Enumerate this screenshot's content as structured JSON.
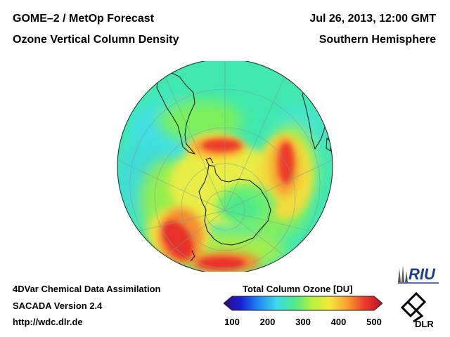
{
  "header": {
    "title_left_1": "GOME–2 / MetOp Forecast",
    "title_left_2": "Ozone Vertical Column Density",
    "title_right_1": "Jul 26, 2013, 12:00 GMT",
    "title_right_2": "Southern Hemisphere"
  },
  "footer": {
    "line1": "4DVar Chemical Data Assimilation",
    "line2": "SACADA Version 2.4",
    "line3": "http://wdc.dlr.de"
  },
  "colorbar": {
    "title": "Total Column Ozone [DU]",
    "min": 100,
    "max": 500,
    "ticks": [
      "100",
      "200",
      "300",
      "400",
      "500"
    ],
    "colors": [
      "#2b0a6e",
      "#1a20d8",
      "#1f8cf0",
      "#3fd8f0",
      "#4ee88a",
      "#b8f040",
      "#f4e83c",
      "#f6a030",
      "#ee3a2a",
      "#b4102a"
    ]
  },
  "logos": {
    "riu_text": "RIU",
    "dlr_text": "DLR"
  },
  "map": {
    "projection": "orthographic, south-polar",
    "variable": "total column ozone",
    "background_color": "#40e8b0"
  }
}
